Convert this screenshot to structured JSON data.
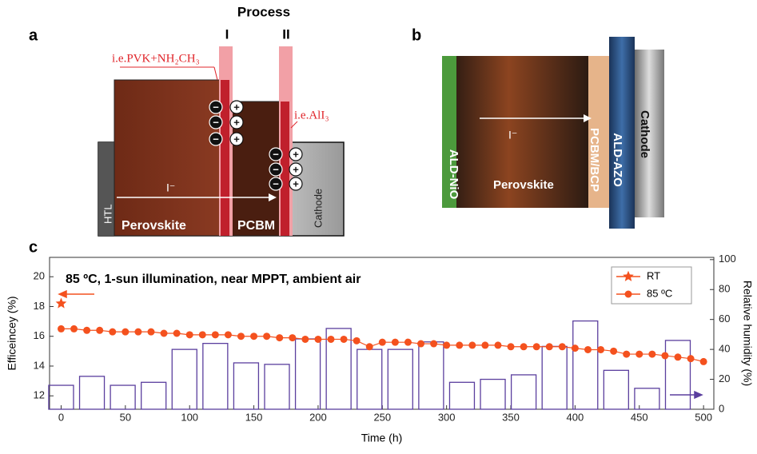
{
  "panel_a": {
    "label": "a",
    "process": "Process",
    "step_1": "I",
    "step_2": "II",
    "note_1": "i.e.PVK+NH₂CH₃",
    "note_2": "i.e.AlI₃",
    "htl": "HTL",
    "perovskite": "Perovskite",
    "pcbm": "PCBM",
    "cathode": "Cathode",
    "ion": "I⁻",
    "anion": "−",
    "cation": "+"
  },
  "panel_b": {
    "label": "b",
    "nio": "ALD-NiO",
    "perovskite": "Perovskite",
    "ion": "I⁻",
    "pcbm": "PCBM/BCP",
    "azo": "ALD-AZO",
    "cathode": "Cathode"
  },
  "chart_data": {
    "type": "combo",
    "label": "c",
    "title": "85 ºC, 1-sun illumination, near MPPT, ambient air",
    "x_label": "Time (h)",
    "y_label": "Efficeincey (%)",
    "y2_label": "Relative humidity (%)",
    "xlim": [
      -9,
      508
    ],
    "xticks": [
      0,
      50,
      100,
      150,
      200,
      250,
      300,
      350,
      400,
      450,
      500
    ],
    "ylim": [
      11.1,
      21.3
    ],
    "yticks": [
      12,
      14,
      16,
      18,
      20
    ],
    "y2lim": [
      0,
      101.5
    ],
    "y2ticks": [
      0,
      20,
      40,
      60,
      80,
      100
    ],
    "legend": "upper right",
    "bars": {
      "axis": "y2",
      "color": "#5b3f9e",
      "x": [
        0,
        24,
        48,
        72,
        96,
        120,
        144,
        168,
        192,
        216,
        240,
        264,
        288,
        312,
        336,
        360,
        384,
        408,
        432,
        456,
        480
      ],
      "values": [
        16,
        22,
        16,
        18,
        40,
        44,
        31,
        30,
        47,
        54,
        40,
        40,
        45,
        18,
        20,
        23,
        42,
        59,
        26,
        14,
        46
      ]
    },
    "series": [
      {
        "name": "RT",
        "color": "#f4511e",
        "marker": "star",
        "x": [
          0
        ],
        "values": [
          18.2
        ]
      },
      {
        "name": "85 ºC",
        "color": "#f4511e",
        "marker": "circle",
        "x": [
          0,
          10,
          20,
          30,
          40,
          50,
          60,
          70,
          80,
          90,
          100,
          110,
          120,
          130,
          140,
          150,
          160,
          170,
          180,
          190,
          200,
          210,
          220,
          230,
          240,
          250,
          260,
          270,
          280,
          290,
          300,
          310,
          320,
          330,
          340,
          350,
          360,
          370,
          380,
          390,
          400,
          410,
          420,
          430,
          440,
          450,
          460,
          470,
          480,
          490,
          500
        ],
        "values": [
          16.5,
          16.5,
          16.4,
          16.4,
          16.3,
          16.3,
          16.3,
          16.3,
          16.2,
          16.2,
          16.1,
          16.1,
          16.1,
          16.1,
          16.0,
          16.0,
          16.0,
          15.9,
          15.9,
          15.8,
          15.8,
          15.8,
          15.8,
          15.7,
          15.3,
          15.6,
          15.6,
          15.6,
          15.5,
          15.5,
          15.4,
          15.4,
          15.4,
          15.4,
          15.4,
          15.3,
          15.3,
          15.3,
          15.3,
          15.3,
          15.2,
          15.1,
          15.1,
          15.0,
          14.8,
          14.8,
          14.8,
          14.7,
          14.6,
          14.5,
          14.3
        ]
      }
    ]
  }
}
